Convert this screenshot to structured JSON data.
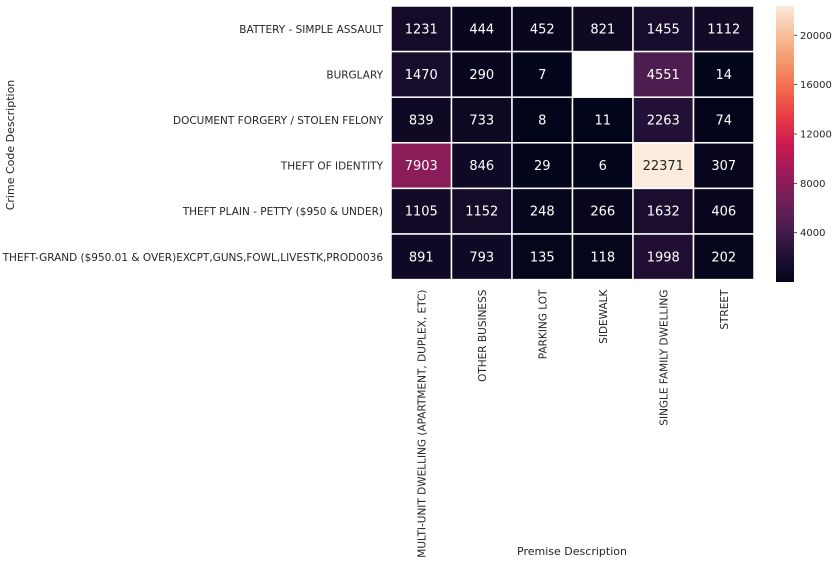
{
  "chart_data": {
    "type": "heatmap",
    "title": "",
    "xlabel": "Premise Description",
    "ylabel": "Crime Code Description",
    "x_categories": [
      "MULTI-UNIT DWELLING (APARTMENT, DUPLEX, ETC)",
      "OTHER BUSINESS",
      "PARKING LOT",
      "SIDEWALK",
      "SINGLE FAMILY DWELLING",
      "STREET"
    ],
    "y_categories": [
      "BATTERY - SIMPLE ASSAULT",
      "BURGLARY",
      "DOCUMENT FORGERY / STOLEN FELONY",
      "THEFT OF IDENTITY",
      "THEFT PLAIN - PETTY ($950 & UNDER)",
      "THEFT-GRAND ($950.01 & OVER)EXCPT,GUNS,FOWL,LIVESTK,PROD0036"
    ],
    "values": [
      [
        1231,
        444,
        452,
        821,
        1455,
        1112
      ],
      [
        1470,
        290,
        7,
        null,
        4551,
        14
      ],
      [
        839,
        733,
        8,
        11,
        2263,
        74
      ],
      [
        7903,
        846,
        29,
        6,
        22371,
        307
      ],
      [
        1105,
        1152,
        248,
        266,
        1632,
        406
      ],
      [
        891,
        793,
        135,
        118,
        1998,
        202
      ]
    ],
    "colormap": "rocket",
    "vmin": 6,
    "vmax": 22371,
    "colorbar": {
      "ticks": [
        4000,
        8000,
        12000,
        16000,
        20000
      ],
      "tick_labels": [
        "4000",
        "8000",
        "12000",
        "16000",
        "20000"
      ]
    }
  }
}
